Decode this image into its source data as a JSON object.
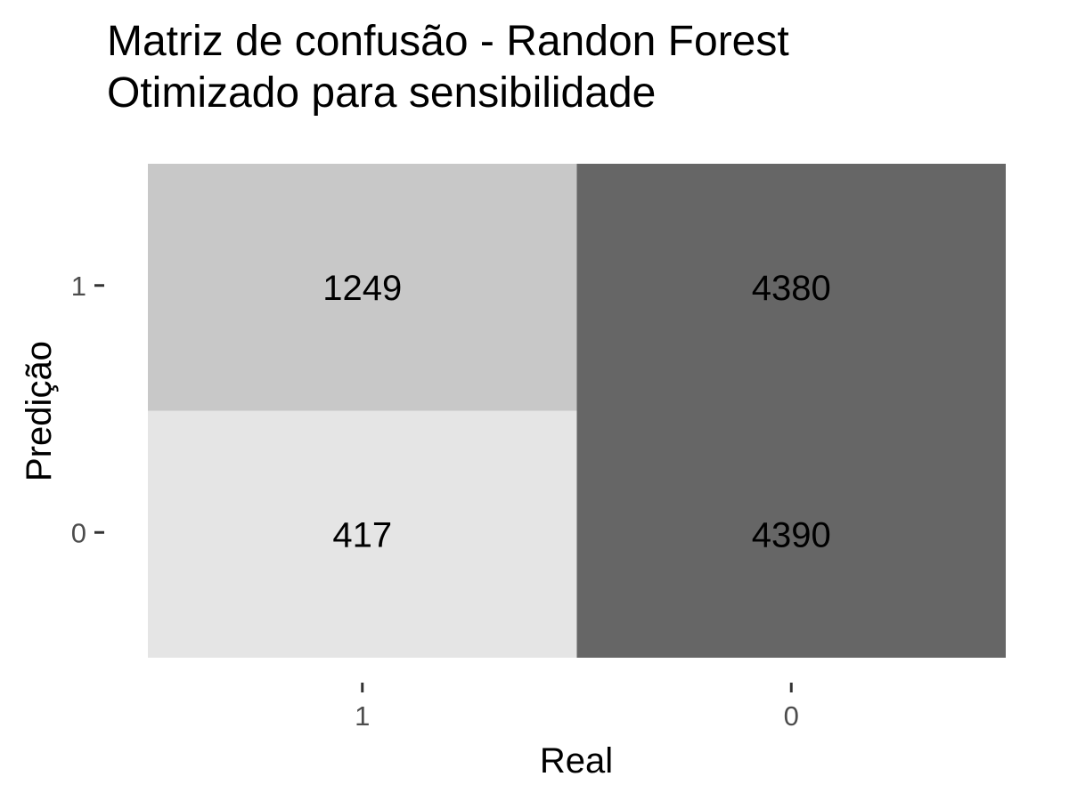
{
  "chart_data": {
    "type": "heatmap",
    "title": "Matriz de confusão - Randon Forest",
    "subtitle": "Otimizado para sensibilidade",
    "xlabel": "Real",
    "ylabel": "Predição",
    "x_categories": [
      "1",
      "0"
    ],
    "y_categories": [
      "1",
      "0"
    ],
    "cells": [
      {
        "x": "1",
        "y": "1",
        "value": 1249,
        "label": "1249",
        "fill": "#c8c8c8"
      },
      {
        "x": "0",
        "y": "1",
        "value": 4380,
        "label": "4380",
        "fill": "#666666"
      },
      {
        "x": "1",
        "y": "0",
        "value": 417,
        "label": "417",
        "fill": "#e5e5e5"
      },
      {
        "x": "0",
        "y": "0",
        "value": 4390,
        "label": "4390",
        "fill": "#666666"
      }
    ],
    "grid": false,
    "legend": "none"
  }
}
